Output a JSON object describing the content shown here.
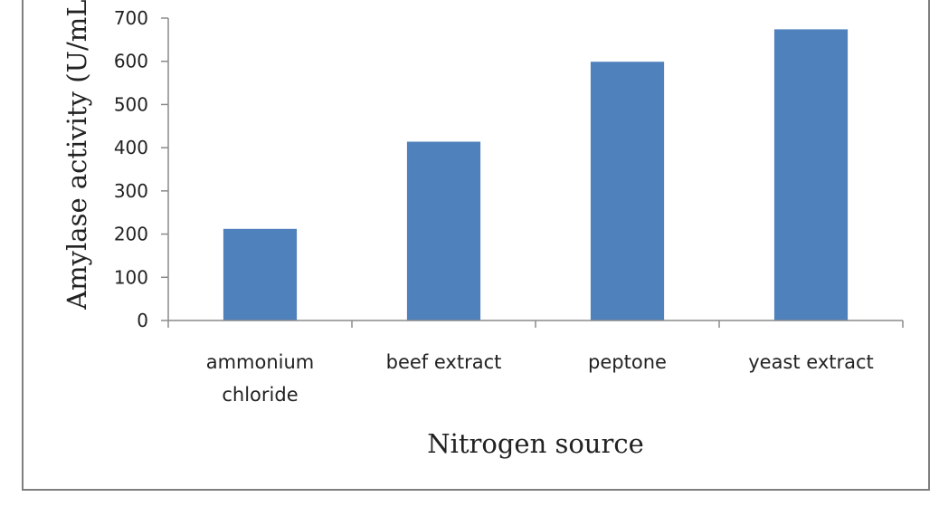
{
  "chart_data": {
    "type": "bar",
    "title": "",
    "xlabel": "Nitrogen source",
    "ylabel": "Amylase activity (U/mL)",
    "categories": [
      [
        "ammonium",
        "chloride"
      ],
      [
        "beef extract"
      ],
      [
        "peptone"
      ],
      [
        "yeast extract"
      ]
    ],
    "values": [
      212,
      414,
      599,
      674
    ],
    "ylim": [
      0,
      700
    ],
    "yticks": [
      0,
      100,
      200,
      300,
      400,
      500,
      600,
      700
    ],
    "grid": false,
    "legend": "none",
    "bar_color": "#4f81bd",
    "axis_color": "#8a8a8a",
    "frame_color": "#7f7f7f"
  }
}
